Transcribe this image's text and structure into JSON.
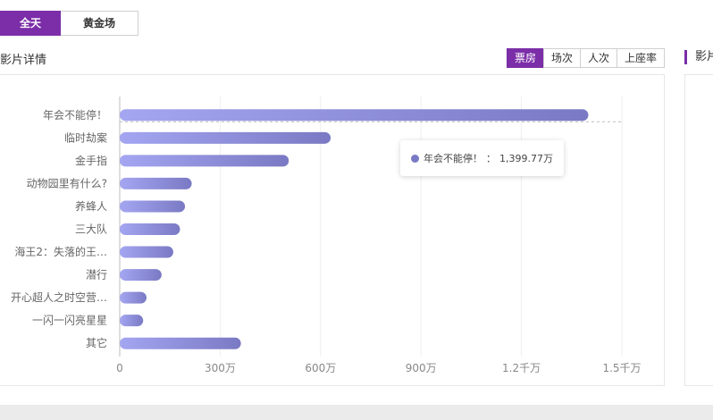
{
  "top_toggle": {
    "items": [
      "全天",
      "黄金场"
    ],
    "active": 0
  },
  "section": {
    "title": "影片详情",
    "right_title": "影片"
  },
  "metric_tabs": {
    "items": [
      "票房",
      "场次",
      "人次",
      "上座率"
    ],
    "active": 0
  },
  "colors": {
    "accent": "#7b2ea8",
    "bar_start": "#a4a6f2",
    "bar_end": "#7a79c4"
  },
  "tooltip": {
    "label": "年会不能停！",
    "separator": "：",
    "value": "1,399.77万"
  },
  "chart_data": {
    "type": "bar",
    "orientation": "horizontal",
    "categories": [
      "年会不能停！",
      "临时劫案",
      "金手指",
      "动物园里有什么?",
      "养蜂人",
      "三大队",
      "海王2：失落的王…",
      "潜行",
      "开心超人之时空营…",
      "一闪一闪亮星星",
      "其它"
    ],
    "values": [
      1399.77,
      630,
      505,
      215,
      195,
      180,
      160,
      125,
      80,
      70,
      362
    ],
    "unit": "万",
    "xlim": [
      0,
      1500
    ],
    "xticks": [
      0,
      300,
      600,
      900,
      1200,
      1500
    ],
    "xtick_labels": [
      "0",
      "300万",
      "600万",
      "900万",
      "1.2千万",
      "1.5千万"
    ],
    "highlight_index": 0,
    "grid": true
  }
}
